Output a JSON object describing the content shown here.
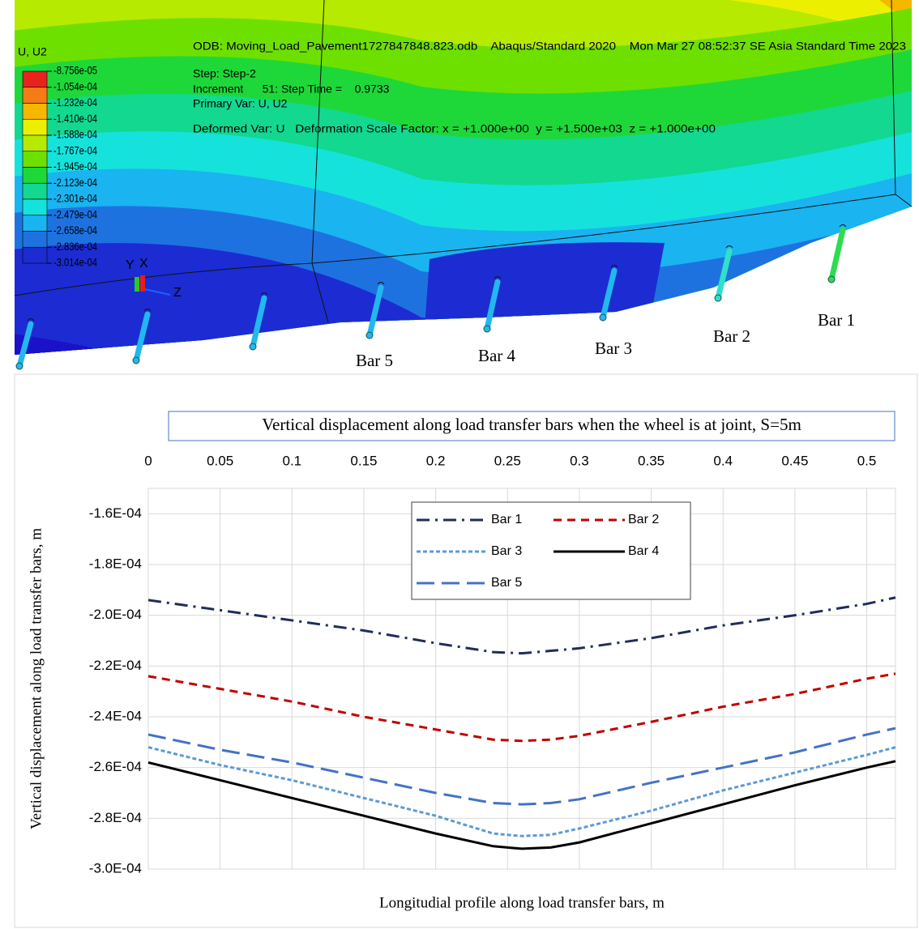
{
  "viewport": {
    "legend_title": "U, U2",
    "legend_values": [
      "-8.756e-05",
      "-1.054e-04",
      "-1.232e-04",
      "-1.410e-04",
      "-1.588e-04",
      "-1.767e-04",
      "-1.945e-04",
      "-2.123e-04",
      "-2.301e-04",
      "-2.479e-04",
      "-2.658e-04",
      "-2.836e-04",
      "-3.014e-04"
    ],
    "legend_colors": [
      "#e8231e",
      "#f47b16",
      "#f5b700",
      "#ecf000",
      "#b6ea00",
      "#6ee000",
      "#1ed83a",
      "#12d890",
      "#16e2dc",
      "#1ab4f0",
      "#1e72e0",
      "#1c2cd2"
    ],
    "header": "ODB: Moving_Load_Pavement1727847848.823.odb    Abaqus/Standard 2020    Mon Mar 27 08:52:37 SE Asia Standard Time 2023",
    "info": [
      "Step: Step-2",
      "Increment      51: Step Time =    0.9733",
      "Primary Var: U, U2",
      "Deformed Var: U   Deformation Scale Factor: x = +1.000e+00  y = +1.500e+03  z = +1.000e+00"
    ],
    "triad": [
      "Y",
      "X",
      "Z"
    ],
    "bar_labels": [
      "Bar 5",
      "Bar 4",
      "Bar 3",
      "Bar 2",
      "Bar 1"
    ]
  },
  "chart_data": {
    "type": "line",
    "title": "Vertical displacement along load transfer bars when the wheel is at joint, S=5m",
    "x_label": "Longitudial profile along load transfer bars, m",
    "y_label": "Vertical displacement along load transfer bars, m",
    "x": [
      0,
      0.05,
      0.1,
      0.15,
      0.2,
      0.24,
      0.26,
      0.28,
      0.3,
      0.35,
      0.4,
      0.45,
      0.5,
      0.52
    ],
    "series": [
      {
        "name": "Bar 1",
        "color": "#1f2d5a",
        "style": "dash-dot",
        "values": [
          -0.000194,
          -0.000198,
          -0.000202,
          -0.000206,
          -0.000211,
          -0.0002145,
          -0.000215,
          -0.000214,
          -0.000213,
          -0.000209,
          -0.000204,
          -0.0002,
          -0.0001955,
          -0.000193
        ]
      },
      {
        "name": "Bar 2",
        "color": "#c00000",
        "style": "dash",
        "values": [
          -0.000224,
          -0.000229,
          -0.000234,
          -0.00024,
          -0.000245,
          -0.000249,
          -0.0002495,
          -0.000249,
          -0.0002475,
          -0.000242,
          -0.000236,
          -0.000231,
          -0.000225,
          -0.000223
        ]
      },
      {
        "name": "Bar 3",
        "color": "#5b9bd5",
        "style": "dot",
        "values": [
          -0.000252,
          -0.000259,
          -0.000265,
          -0.000272,
          -0.000279,
          -0.000286,
          -0.000287,
          -0.0002865,
          -0.000284,
          -0.000277,
          -0.000269,
          -0.000262,
          -0.000255,
          -0.000252
        ]
      },
      {
        "name": "Bar 4",
        "color": "#000000",
        "style": "solid",
        "values": [
          -0.000258,
          -0.000265,
          -0.000272,
          -0.000279,
          -0.000286,
          -0.000291,
          -0.000292,
          -0.0002915,
          -0.0002895,
          -0.000282,
          -0.0002745,
          -0.000267,
          -0.00026,
          -0.0002575
        ]
      },
      {
        "name": "Bar 5",
        "color": "#4472c4",
        "style": "long-dash",
        "values": [
          -0.000247,
          -0.000253,
          -0.000258,
          -0.000264,
          -0.00027,
          -0.000274,
          -0.0002745,
          -0.000274,
          -0.0002725,
          -0.000266,
          -0.00026,
          -0.000254,
          -0.000247,
          -0.0002445
        ]
      }
    ],
    "xlim": [
      0,
      0.52
    ],
    "xticks": [
      0,
      0.05,
      0.1,
      0.15,
      0.2,
      0.25,
      0.3,
      0.35,
      0.4,
      0.45,
      0.5
    ],
    "ylim": [
      -0.0003,
      -0.00015
    ],
    "yticks": [
      {
        "value": -0.00016,
        "label": "-1.6E-04"
      },
      {
        "value": -0.00018,
        "label": "-1.8E-04"
      },
      {
        "value": -0.0002,
        "label": "-2.0E-04"
      },
      {
        "value": -0.00022,
        "label": "-2.2E-04"
      },
      {
        "value": -0.00024,
        "label": "-2.4E-04"
      },
      {
        "value": -0.00026,
        "label": "-2.6E-04"
      },
      {
        "value": -0.00028,
        "label": "-2.8E-04"
      },
      {
        "value": -0.0003,
        "label": "-3.0E-04"
      }
    ],
    "grid": true,
    "legend": "top-center"
  }
}
